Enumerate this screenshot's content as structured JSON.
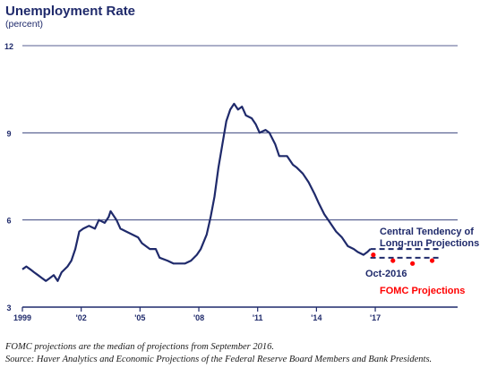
{
  "header": {
    "title": "Unemployment Rate",
    "subtitle": "(percent)"
  },
  "footnotes": {
    "line1": "FOMC projections are the median of projections from September 2016.",
    "line2": "Source: Haver Analytics and Economic Projections of the Federal Reserve Board Members and Bank Presidents."
  },
  "colors": {
    "series": "#1f2a6b",
    "projection": "#ff0000",
    "grid": "#1f2a6b"
  },
  "chart_data": {
    "type": "line",
    "title": "Unemployment Rate",
    "ylabel": "(percent)",
    "xlabel": "",
    "xlim": [
      1999,
      2021.2
    ],
    "ylim": [
      3,
      12
    ],
    "x_ticks": [
      {
        "value": 1999,
        "label": "1999"
      },
      {
        "value": 2002,
        "label": "'02"
      },
      {
        "value": 2005,
        "label": "'05"
      },
      {
        "value": 2008,
        "label": "'08"
      },
      {
        "value": 2011,
        "label": "'11"
      },
      {
        "value": 2014,
        "label": "'14"
      },
      {
        "value": 2017,
        "label": "'17"
      }
    ],
    "y_ticks": [
      3,
      6,
      9,
      12
    ],
    "grid": "horizontal",
    "series": [
      {
        "name": "",
        "points": [
          [
            1999.0,
            4.3
          ],
          [
            1999.2,
            4.4
          ],
          [
            1999.4,
            4.3
          ],
          [
            1999.6,
            4.2
          ],
          [
            1999.8,
            4.1
          ],
          [
            2000.0,
            4.0
          ],
          [
            2000.2,
            3.9
          ],
          [
            2000.4,
            4.0
          ],
          [
            2000.6,
            4.1
          ],
          [
            2000.8,
            3.9
          ],
          [
            2001.0,
            4.2
          ],
          [
            2001.3,
            4.4
          ],
          [
            2001.5,
            4.6
          ],
          [
            2001.7,
            5.0
          ],
          [
            2001.9,
            5.6
          ],
          [
            2002.1,
            5.7
          ],
          [
            2002.4,
            5.8
          ],
          [
            2002.7,
            5.7
          ],
          [
            2002.9,
            6.0
          ],
          [
            2003.2,
            5.9
          ],
          [
            2003.4,
            6.1
          ],
          [
            2003.5,
            6.3
          ],
          [
            2003.8,
            6.0
          ],
          [
            2004.0,
            5.7
          ],
          [
            2004.3,
            5.6
          ],
          [
            2004.6,
            5.5
          ],
          [
            2004.9,
            5.4
          ],
          [
            2005.1,
            5.2
          ],
          [
            2005.5,
            5.0
          ],
          [
            2005.8,
            5.0
          ],
          [
            2006.0,
            4.7
          ],
          [
            2006.4,
            4.6
          ],
          [
            2006.7,
            4.5
          ],
          [
            2007.0,
            4.5
          ],
          [
            2007.3,
            4.5
          ],
          [
            2007.6,
            4.6
          ],
          [
            2007.9,
            4.8
          ],
          [
            2008.1,
            5.0
          ],
          [
            2008.4,
            5.5
          ],
          [
            2008.6,
            6.1
          ],
          [
            2008.8,
            6.8
          ],
          [
            2009.0,
            7.8
          ],
          [
            2009.2,
            8.6
          ],
          [
            2009.4,
            9.4
          ],
          [
            2009.6,
            9.8
          ],
          [
            2009.8,
            10.0
          ],
          [
            2010.0,
            9.8
          ],
          [
            2010.2,
            9.9
          ],
          [
            2010.4,
            9.6
          ],
          [
            2010.7,
            9.5
          ],
          [
            2010.9,
            9.3
          ],
          [
            2011.1,
            9.0
          ],
          [
            2011.4,
            9.1
          ],
          [
            2011.6,
            9.0
          ],
          [
            2011.9,
            8.6
          ],
          [
            2012.1,
            8.2
          ],
          [
            2012.5,
            8.2
          ],
          [
            2012.8,
            7.9
          ],
          [
            2013.0,
            7.8
          ],
          [
            2013.3,
            7.6
          ],
          [
            2013.6,
            7.3
          ],
          [
            2013.9,
            6.9
          ],
          [
            2014.1,
            6.6
          ],
          [
            2014.4,
            6.2
          ],
          [
            2014.7,
            5.9
          ],
          [
            2015.0,
            5.6
          ],
          [
            2015.3,
            5.4
          ],
          [
            2015.6,
            5.1
          ],
          [
            2015.9,
            5.0
          ],
          [
            2016.1,
            4.9
          ],
          [
            2016.4,
            4.8
          ],
          [
            2016.6,
            4.9
          ],
          [
            2016.75,
            5.0
          ]
        ]
      }
    ],
    "fomc_projections": {
      "label": "FOMC Projections",
      "points": [
        [
          2016.9,
          4.8
        ],
        [
          2017.9,
          4.6
        ],
        [
          2018.9,
          4.5
        ],
        [
          2019.9,
          4.6
        ]
      ]
    },
    "long_run_band": {
      "label_line1": "Central Tendency of",
      "label_line2": "Long-run Projections",
      "x_start": 2016.75,
      "x_end": 2020.3,
      "lower": 4.7,
      "upper": 5.0
    },
    "annotations": {
      "current": "Oct-2016"
    }
  }
}
